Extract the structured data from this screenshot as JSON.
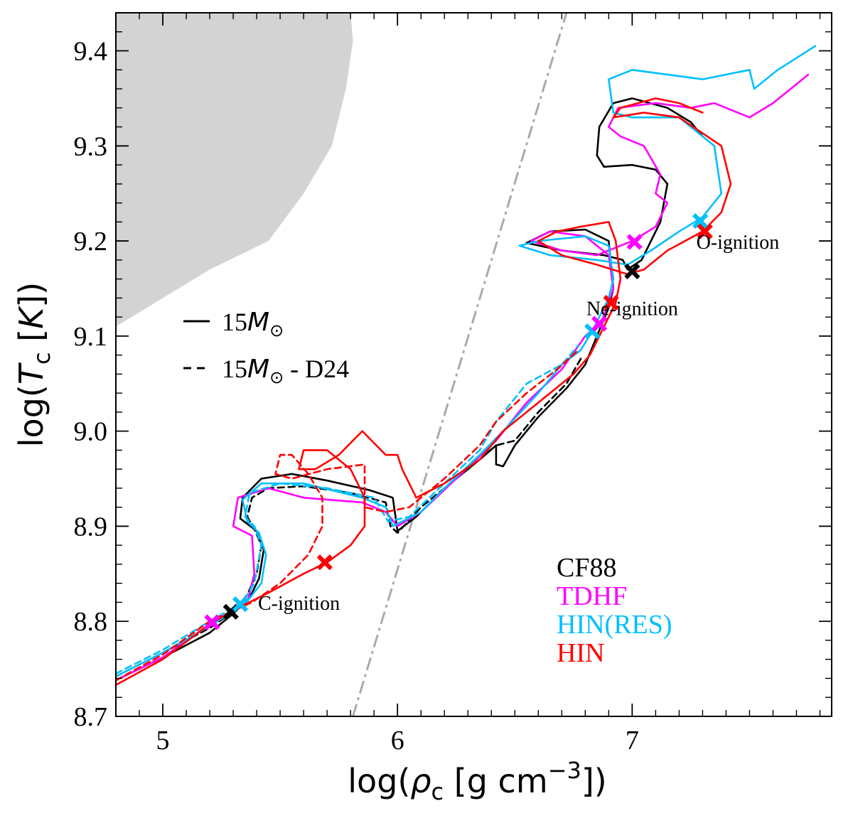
{
  "chart_data": {
    "type": "line",
    "title": "",
    "xlabel_parts": [
      "log(",
      "ρ",
      "c",
      " [g cm",
      "−3",
      "])"
    ],
    "ylabel_parts": [
      "log(",
      "T",
      "c",
      " [",
      "K",
      "])"
    ],
    "xlim": [
      4.8,
      7.85
    ],
    "ylim": [
      8.7,
      9.44
    ],
    "xticks": [
      5,
      6,
      7
    ],
    "xtick_labels": [
      "5",
      "6",
      "7"
    ],
    "yticks": [
      8.7,
      8.8,
      8.9,
      9.0,
      9.1,
      9.2,
      9.3,
      9.4
    ],
    "ytick_labels": [
      "8.7",
      "8.8",
      "8.9",
      "9.0",
      "9.1",
      "9.2",
      "9.3",
      "9.4"
    ],
    "colors": {
      "CF88": "#000000",
      "TDHF": "#ff00ff",
      "HIN(RES)": "#00bfff",
      "HIN": "#ff0000",
      "shade": "#d3d3d3",
      "boundary": "#aaaaaa"
    },
    "style_legend": [
      {
        "label": "15M☉",
        "parts": [
          "15",
          "M",
          "⊙"
        ],
        "dash": "solid"
      },
      {
        "label": "15M☉ - D24",
        "parts": [
          "15",
          "M",
          "⊙",
          " - D24"
        ],
        "dash": "dashed"
      }
    ],
    "color_legend": [
      {
        "label": "CF88",
        "key": "CF88"
      },
      {
        "label": "TDHF",
        "key": "TDHF"
      },
      {
        "label": "HIN(RES)",
        "key": "HIN(RES)"
      },
      {
        "label": "HIN",
        "key": "HIN"
      }
    ],
    "annotations": [
      {
        "text": "C-ignition",
        "x": 5.58,
        "y": 8.812
      },
      {
        "text": "Ne-ignition",
        "x": 7.0,
        "y": 9.122
      },
      {
        "text": "O-ignition",
        "x": 7.45,
        "y": 9.192
      }
    ],
    "shaded_region": [
      [
        4.8,
        9.44
      ],
      [
        5.8,
        9.44
      ],
      [
        5.81,
        9.41
      ],
      [
        5.78,
        9.36
      ],
      [
        5.72,
        9.3
      ],
      [
        5.6,
        9.25
      ],
      [
        5.45,
        9.2
      ],
      [
        5.2,
        9.17
      ],
      [
        5.0,
        9.14
      ],
      [
        4.8,
        9.11
      ]
    ],
    "boundary_line": [
      [
        5.81,
        8.7
      ],
      [
        6.72,
        9.44
      ]
    ],
    "series": [
      {
        "name": "CF88",
        "model": "15M☉",
        "points": [
          [
            4.8,
            8.738
          ],
          [
            5.0,
            8.762
          ],
          [
            5.2,
            8.788
          ],
          [
            5.3,
            8.808
          ],
          [
            5.37,
            8.825
          ],
          [
            5.41,
            8.845
          ],
          [
            5.43,
            8.875
          ],
          [
            5.4,
            8.895
          ],
          [
            5.33,
            8.908
          ],
          [
            5.34,
            8.93
          ],
          [
            5.42,
            8.95
          ],
          [
            5.55,
            8.955
          ],
          [
            5.7,
            8.948
          ],
          [
            5.88,
            8.938
          ],
          [
            5.98,
            8.93
          ],
          [
            6.0,
            8.895
          ],
          [
            6.08,
            8.91
          ],
          [
            6.2,
            8.94
          ],
          [
            6.35,
            8.97
          ],
          [
            6.42,
            8.985
          ],
          [
            6.42,
            8.965
          ],
          [
            6.45,
            8.963
          ],
          [
            6.5,
            8.985
          ],
          [
            6.6,
            9.015
          ],
          [
            6.72,
            9.045
          ],
          [
            6.8,
            9.07
          ],
          [
            6.85,
            9.1
          ],
          [
            6.9,
            9.13
          ],
          [
            6.92,
            9.15
          ],
          [
            6.9,
            9.2
          ],
          [
            6.8,
            9.212
          ],
          [
            6.65,
            9.21
          ],
          [
            6.55,
            9.198
          ],
          [
            6.7,
            9.19
          ],
          [
            6.88,
            9.185
          ],
          [
            6.96,
            9.18
          ],
          [
            6.98,
            9.17
          ],
          [
            7.04,
            9.18
          ],
          [
            7.12,
            9.22
          ],
          [
            7.15,
            9.26
          ],
          [
            7.1,
            9.275
          ],
          [
            7.0,
            9.28
          ],
          [
            6.88,
            9.278
          ],
          [
            6.85,
            9.29
          ],
          [
            6.86,
            9.32
          ],
          [
            6.92,
            9.345
          ],
          [
            7.0,
            9.35
          ],
          [
            7.15,
            9.34
          ],
          [
            7.25,
            9.325
          ],
          [
            7.3,
            9.31
          ]
        ]
      },
      {
        "name": "CF88",
        "model": "15M☉ - D24",
        "points": [
          [
            4.8,
            8.742
          ],
          [
            5.0,
            8.767
          ],
          [
            5.2,
            8.793
          ],
          [
            5.3,
            8.81
          ],
          [
            5.36,
            8.828
          ],
          [
            5.4,
            8.85
          ],
          [
            5.42,
            8.88
          ],
          [
            5.39,
            8.897
          ],
          [
            5.36,
            8.91
          ],
          [
            5.38,
            8.93
          ],
          [
            5.45,
            8.94
          ],
          [
            5.6,
            8.942
          ],
          [
            5.8,
            8.935
          ],
          [
            5.95,
            8.925
          ],
          [
            5.97,
            8.9
          ],
          [
            6.0,
            8.893
          ],
          [
            6.1,
            8.92
          ],
          [
            6.3,
            8.96
          ],
          [
            6.42,
            8.985
          ],
          [
            6.5,
            8.99
          ],
          [
            6.6,
            9.02
          ],
          [
            6.72,
            9.05
          ],
          [
            6.79,
            9.08
          ]
        ]
      },
      {
        "name": "TDHF",
        "model": "15M☉",
        "points": [
          [
            4.8,
            8.738
          ],
          [
            5.0,
            8.762
          ],
          [
            5.2,
            8.797
          ],
          [
            5.3,
            8.812
          ],
          [
            5.36,
            8.82
          ],
          [
            5.39,
            8.85
          ],
          [
            5.38,
            8.89
          ],
          [
            5.3,
            8.9
          ],
          [
            5.32,
            8.93
          ],
          [
            5.45,
            8.94
          ],
          [
            5.6,
            8.93
          ],
          [
            5.85,
            8.925
          ],
          [
            5.95,
            8.915
          ],
          [
            6.0,
            8.9
          ],
          [
            6.1,
            8.915
          ],
          [
            6.25,
            8.95
          ],
          [
            6.42,
            8.99
          ],
          [
            6.55,
            9.03
          ],
          [
            6.7,
            9.065
          ],
          [
            6.8,
            9.1
          ],
          [
            6.87,
            9.115
          ],
          [
            6.92,
            9.15
          ],
          [
            6.9,
            9.185
          ],
          [
            6.8,
            9.205
          ],
          [
            6.65,
            9.21
          ],
          [
            6.57,
            9.2
          ],
          [
            6.7,
            9.19
          ],
          [
            6.85,
            9.185
          ],
          [
            7.0,
            9.2
          ],
          [
            7.1,
            9.215
          ],
          [
            7.15,
            9.24
          ],
          [
            7.1,
            9.25
          ],
          [
            7.12,
            9.27
          ],
          [
            7.05,
            9.3
          ],
          [
            6.95,
            9.31
          ],
          [
            6.9,
            9.32
          ],
          [
            6.94,
            9.34
          ],
          [
            7.1,
            9.345
          ],
          [
            7.25,
            9.34
          ],
          [
            7.35,
            9.345
          ],
          [
            7.5,
            9.33
          ],
          [
            7.6,
            9.345
          ],
          [
            7.75,
            9.375
          ]
        ]
      },
      {
        "name": "HIN(RES)",
        "model": "15M☉",
        "points": [
          [
            4.8,
            8.742
          ],
          [
            5.0,
            8.767
          ],
          [
            5.2,
            8.795
          ],
          [
            5.35,
            8.818
          ],
          [
            5.42,
            8.84
          ],
          [
            5.44,
            8.87
          ],
          [
            5.41,
            8.893
          ],
          [
            5.36,
            8.905
          ],
          [
            5.34,
            8.928
          ],
          [
            5.42,
            8.945
          ],
          [
            5.6,
            8.945
          ],
          [
            5.85,
            8.93
          ],
          [
            5.95,
            8.92
          ],
          [
            5.98,
            8.9
          ],
          [
            6.1,
            8.915
          ],
          [
            6.2,
            8.94
          ],
          [
            6.35,
            8.975
          ],
          [
            6.45,
            9.0
          ],
          [
            6.6,
            9.04
          ],
          [
            6.7,
            9.07
          ],
          [
            6.78,
            9.085
          ],
          [
            6.83,
            9.105
          ],
          [
            6.9,
            9.14
          ],
          [
            6.92,
            9.16
          ],
          [
            6.9,
            9.195
          ],
          [
            6.8,
            9.205
          ],
          [
            6.6,
            9.2
          ],
          [
            6.52,
            9.195
          ],
          [
            6.65,
            9.185
          ],
          [
            6.85,
            9.18
          ],
          [
            6.98,
            9.175
          ],
          [
            7.08,
            9.19
          ],
          [
            7.2,
            9.21
          ],
          [
            7.3,
            9.225
          ],
          [
            7.38,
            9.25
          ],
          [
            7.35,
            9.3
          ],
          [
            7.2,
            9.33
          ],
          [
            7.0,
            9.33
          ],
          [
            6.92,
            9.335
          ],
          [
            6.9,
            9.37
          ],
          [
            7.0,
            9.38
          ],
          [
            7.3,
            9.37
          ],
          [
            7.5,
            9.38
          ],
          [
            7.52,
            9.36
          ],
          [
            7.62,
            9.38
          ],
          [
            7.78,
            9.405
          ]
        ]
      },
      {
        "name": "HIN(RES)",
        "model": "15M☉ - D24",
        "points": [
          [
            4.8,
            8.745
          ],
          [
            5.0,
            8.77
          ],
          [
            5.2,
            8.8
          ],
          [
            5.34,
            8.82
          ],
          [
            5.39,
            8.84
          ],
          [
            5.42,
            8.88
          ],
          [
            5.39,
            8.9
          ],
          [
            5.35,
            8.91
          ],
          [
            5.37,
            8.935
          ],
          [
            5.5,
            8.945
          ],
          [
            5.7,
            8.94
          ],
          [
            5.9,
            8.93
          ],
          [
            5.96,
            8.905
          ],
          [
            6.05,
            8.91
          ],
          [
            6.2,
            8.945
          ],
          [
            6.35,
            8.98
          ],
          [
            6.42,
            9.01
          ],
          [
            6.55,
            9.05
          ],
          [
            6.7,
            9.07
          ],
          [
            6.77,
            9.09
          ]
        ]
      },
      {
        "name": "HIN",
        "model": "15M☉",
        "points": [
          [
            4.8,
            8.733
          ],
          [
            5.0,
            8.76
          ],
          [
            5.2,
            8.797
          ],
          [
            5.32,
            8.814
          ],
          [
            5.45,
            8.83
          ],
          [
            5.6,
            8.85
          ],
          [
            5.7,
            8.862
          ],
          [
            5.8,
            8.88
          ],
          [
            5.86,
            8.9
          ],
          [
            5.86,
            8.93
          ],
          [
            5.8,
            8.96
          ],
          [
            5.7,
            8.98
          ],
          [
            5.6,
            8.98
          ],
          [
            5.58,
            8.96
          ],
          [
            5.65,
            8.96
          ],
          [
            5.75,
            8.975
          ],
          [
            5.85,
            9.0
          ],
          [
            5.95,
            8.975
          ],
          [
            6.0,
            8.975
          ],
          [
            6.02,
            8.96
          ],
          [
            6.08,
            8.93
          ],
          [
            6.2,
            8.945
          ],
          [
            6.35,
            8.97
          ],
          [
            6.45,
            9.0
          ],
          [
            6.6,
            9.03
          ],
          [
            6.75,
            9.06
          ],
          [
            6.82,
            9.08
          ],
          [
            6.88,
            9.11
          ],
          [
            6.93,
            9.135
          ],
          [
            6.95,
            9.16
          ],
          [
            6.93,
            9.2
          ],
          [
            6.9,
            9.22
          ],
          [
            6.78,
            9.215
          ],
          [
            6.68,
            9.21
          ],
          [
            6.6,
            9.2
          ],
          [
            6.7,
            9.185
          ],
          [
            6.85,
            9.175
          ],
          [
            6.98,
            9.165
          ],
          [
            7.05,
            9.17
          ],
          [
            7.15,
            9.19
          ],
          [
            7.3,
            9.21
          ],
          [
            7.38,
            9.23
          ],
          [
            7.42,
            9.26
          ],
          [
            7.38,
            9.3
          ],
          [
            7.2,
            9.33
          ],
          [
            7.05,
            9.335
          ],
          [
            6.92,
            9.33
          ],
          [
            6.95,
            9.34
          ],
          [
            7.1,
            9.35
          ],
          [
            7.2,
            9.345
          ],
          [
            7.3,
            9.335
          ]
        ]
      },
      {
        "name": "HIN",
        "model": "15M☉ - D24",
        "points": [
          [
            4.8,
            8.738
          ],
          [
            5.0,
            8.765
          ],
          [
            5.2,
            8.8
          ],
          [
            5.38,
            8.82
          ],
          [
            5.5,
            8.84
          ],
          [
            5.62,
            8.87
          ],
          [
            5.68,
            8.9
          ],
          [
            5.68,
            8.93
          ],
          [
            5.62,
            8.955
          ],
          [
            5.55,
            8.975
          ],
          [
            5.5,
            8.975
          ],
          [
            5.48,
            8.955
          ],
          [
            5.55,
            8.95
          ],
          [
            5.7,
            8.96
          ],
          [
            5.86,
            8.965
          ],
          [
            5.86,
            8.92
          ],
          [
            5.95,
            8.915
          ],
          [
            6.05,
            8.92
          ],
          [
            6.2,
            8.95
          ],
          [
            6.35,
            8.985
          ],
          [
            6.42,
            9.01
          ],
          [
            6.55,
            9.04
          ],
          [
            6.68,
            9.065
          ],
          [
            6.77,
            9.085
          ]
        ]
      }
    ],
    "markers": [
      {
        "series": "TDHF",
        "x": 5.21,
        "y": 8.799
      },
      {
        "series": "CF88",
        "x": 5.29,
        "y": 8.81
      },
      {
        "series": "HIN(RES)",
        "x": 5.33,
        "y": 8.818
      },
      {
        "series": "HIN",
        "x": 5.69,
        "y": 8.862
      },
      {
        "series": "HIN(RES)",
        "x": 6.83,
        "y": 9.105
      },
      {
        "series": "TDHF",
        "x": 6.86,
        "y": 9.113
      },
      {
        "series": "HIN",
        "x": 6.91,
        "y": 9.135
      },
      {
        "series": "CF88",
        "x": 7.0,
        "y": 9.168
      },
      {
        "series": "TDHF",
        "x": 7.01,
        "y": 9.199
      },
      {
        "series": "HIN(RES)",
        "x": 7.29,
        "y": 9.221
      },
      {
        "series": "HIN",
        "x": 7.31,
        "y": 9.21
      }
    ]
  }
}
